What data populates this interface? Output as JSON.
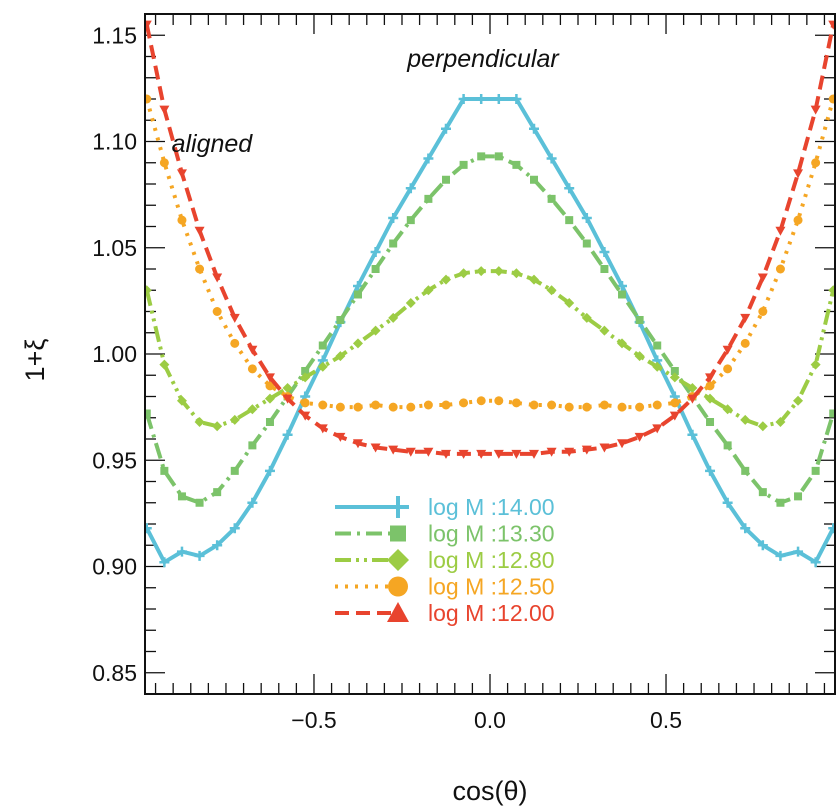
{
  "chart_data": {
    "type": "line",
    "xlabel": "cos(θ)",
    "ylabel": "1+ξ",
    "xlim": [
      -0.98,
      0.98
    ],
    "ylim": [
      0.84,
      1.16
    ],
    "xticks": [
      {
        "value": -0.5,
        "label": "−0.5"
      },
      {
        "value": 0.0,
        "label": "0.0"
      },
      {
        "value": 0.5,
        "label": "0.5"
      }
    ],
    "yticks": [
      {
        "value": 0.85,
        "label": "0.85"
      },
      {
        "value": 0.9,
        "label": "0.90"
      },
      {
        "value": 0.95,
        "label": "0.95"
      },
      {
        "value": 1.0,
        "label": "1.00"
      },
      {
        "value": 1.05,
        "label": "1.05"
      },
      {
        "value": 1.1,
        "label": "1.10"
      },
      {
        "value": 1.15,
        "label": "1.15"
      }
    ],
    "grid": false,
    "legend_position": "bottom-center",
    "annotations": [
      {
        "text": "perpendicular",
        "x": -0.02,
        "y": 1.135
      },
      {
        "text": "aligned",
        "x": -0.79,
        "y": 1.095
      }
    ],
    "x": [
      -0.975,
      -0.925,
      -0.875,
      -0.825,
      -0.775,
      -0.725,
      -0.675,
      -0.625,
      -0.575,
      -0.525,
      -0.475,
      -0.425,
      -0.375,
      -0.325,
      -0.275,
      -0.225,
      -0.175,
      -0.125,
      -0.075,
      -0.025,
      0.025,
      0.075,
      0.125,
      0.175,
      0.225,
      0.275,
      0.325,
      0.375,
      0.425,
      0.475,
      0.525,
      0.575,
      0.625,
      0.675,
      0.725,
      0.775,
      0.825,
      0.875,
      0.925,
      0.975
    ],
    "series": [
      {
        "name": "log M :14.00",
        "color": "#5bc0d8",
        "dash": "solid",
        "marker": "plus",
        "values": [
          0.918,
          0.902,
          0.907,
          0.905,
          0.91,
          0.918,
          0.93,
          0.945,
          0.962,
          0.98,
          0.997,
          1.015,
          1.032,
          1.048,
          1.064,
          1.078,
          1.092,
          1.106,
          1.12,
          1.12,
          1.12,
          1.12,
          1.106,
          1.092,
          1.078,
          1.064,
          1.048,
          1.032,
          1.015,
          0.997,
          0.98,
          0.962,
          0.945,
          0.93,
          0.918,
          0.91,
          0.905,
          0.907,
          0.902,
          0.918
        ]
      },
      {
        "name": "log M :13.30",
        "color": "#7cc36a",
        "dash": "dashdot",
        "marker": "square",
        "values": [
          0.972,
          0.945,
          0.933,
          0.93,
          0.935,
          0.945,
          0.957,
          0.968,
          0.98,
          0.992,
          1.004,
          1.016,
          1.028,
          1.04,
          1.052,
          1.063,
          1.073,
          1.082,
          1.089,
          1.093,
          1.093,
          1.089,
          1.082,
          1.073,
          1.063,
          1.052,
          1.04,
          1.028,
          1.016,
          1.004,
          0.992,
          0.98,
          0.968,
          0.957,
          0.945,
          0.935,
          0.93,
          0.933,
          0.945,
          0.972
        ]
      },
      {
        "name": "log M :12.80",
        "color": "#9ccc44",
        "dash": "dashdotdot",
        "marker": "diamond",
        "values": [
          1.03,
          0.995,
          0.978,
          0.968,
          0.966,
          0.969,
          0.974,
          0.979,
          0.984,
          0.989,
          0.994,
          0.999,
          1.005,
          1.011,
          1.017,
          1.024,
          1.03,
          1.035,
          1.038,
          1.039,
          1.039,
          1.038,
          1.035,
          1.03,
          1.024,
          1.017,
          1.011,
          1.005,
          0.999,
          0.994,
          0.989,
          0.984,
          0.979,
          0.974,
          0.969,
          0.966,
          0.968,
          0.978,
          0.995,
          1.03
        ]
      },
      {
        "name": "log M :12.50",
        "color": "#f5a623",
        "dash": "dotted",
        "marker": "circle",
        "values": [
          1.12,
          1.09,
          1.063,
          1.04,
          1.02,
          1.005,
          0.993,
          0.985,
          0.98,
          0.977,
          0.976,
          0.975,
          0.975,
          0.976,
          0.975,
          0.975,
          0.976,
          0.976,
          0.977,
          0.978,
          0.978,
          0.977,
          0.976,
          0.976,
          0.975,
          0.975,
          0.976,
          0.975,
          0.975,
          0.976,
          0.977,
          0.98,
          0.985,
          0.993,
          1.005,
          1.02,
          1.04,
          1.063,
          1.09,
          1.12
        ]
      },
      {
        "name": "log M :12.00",
        "color": "#e8442e",
        "dash": "dashed",
        "marker": "triangle",
        "values": [
          1.155,
          1.115,
          1.085,
          1.058,
          1.036,
          1.017,
          1.002,
          0.989,
          0.979,
          0.971,
          0.965,
          0.961,
          0.958,
          0.956,
          0.955,
          0.954,
          0.954,
          0.953,
          0.953,
          0.953,
          0.953,
          0.953,
          0.953,
          0.954,
          0.954,
          0.955,
          0.956,
          0.958,
          0.961,
          0.965,
          0.971,
          0.979,
          0.989,
          1.002,
          1.017,
          1.036,
          1.058,
          1.085,
          1.115,
          1.155
        ]
      }
    ]
  }
}
